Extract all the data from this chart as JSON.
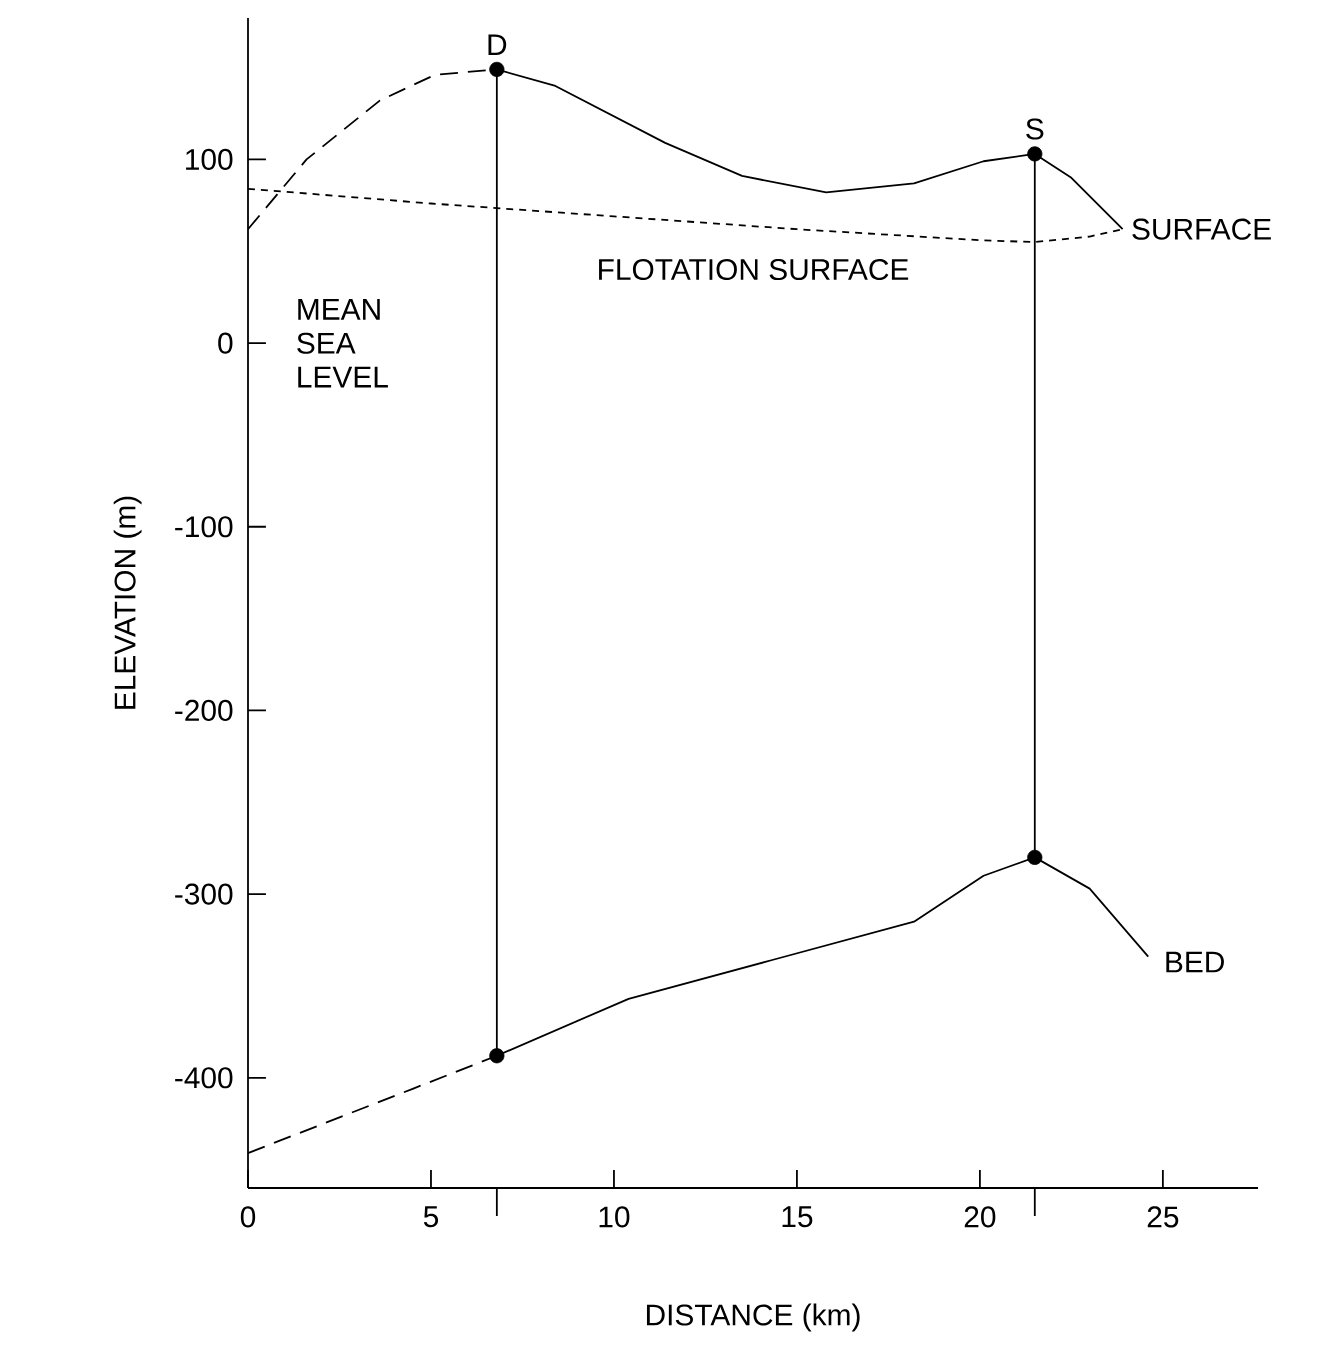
{
  "chart_data": {
    "type": "line",
    "xlabel": "DISTANCE (km)",
    "ylabel": "ELEVATION (m)",
    "xlim": [
      0,
      27.6
    ],
    "ylim": [
      -460,
      177
    ],
    "xticks": [
      0,
      5,
      10,
      15,
      20,
      25,
      {
        "value": 6.8,
        "label": null
      },
      {
        "value": 21.5,
        "label": null
      }
    ],
    "yticks": [
      -400,
      -300,
      -200,
      -100,
      0,
      100
    ],
    "series": [
      {
        "line_style": "dashed",
        "color": "#000000",
        "x": [
          0,
          1.6,
          3.6,
          5.1,
          6.8
        ],
        "values": [
          62,
          100,
          132,
          146,
          149
        ]
      },
      {
        "line_style": "solid",
        "color": "#000000",
        "x": [
          6.8,
          8.4,
          11.4,
          13.5,
          15.8,
          18.2,
          20.1,
          21.5,
          22.5,
          23.9
        ],
        "values": [
          149,
          140,
          109,
          91,
          82,
          87,
          99,
          103,
          90,
          62
        ]
      },
      {
        "line_style": "dotted",
        "color": "#000000",
        "x": [
          0,
          5,
          10,
          15,
          20,
          21.5,
          23,
          23.9
        ],
        "values": [
          84,
          76,
          69,
          62,
          56,
          55,
          58,
          62
        ]
      },
      {
        "line_style": "dashed",
        "color": "#000000",
        "x": [
          0,
          4.5,
          6.8
        ],
        "values": [
          -441,
          -406,
          -388
        ]
      },
      {
        "line_style": "solid",
        "color": "#000000",
        "x": [
          6.8,
          10.4,
          14.3,
          18.2,
          20.1,
          21.5,
          23,
          24.6
        ],
        "values": [
          -388,
          -357,
          -336,
          -315,
          -290,
          -280,
          -297,
          -334
        ]
      },
      {
        "type": "scatter",
        "color": "#000000",
        "x": [
          6.8,
          21.5,
          6.8,
          21.5
        ],
        "values": [
          149,
          103,
          -388,
          -280
        ]
      }
    ],
    "ref_lines": [
      {
        "axis": "x",
        "value": 6.8,
        "color": "#000000"
      },
      {
        "axis": "x",
        "value": 21.5,
        "color": "#000000"
      }
    ],
    "annotations": [
      {
        "text": "D",
        "x": 6.8,
        "y": 149
      },
      {
        "text": "S",
        "x": 21.5,
        "y": 103
      },
      {
        "text": "SURFACE",
        "x": 23.9,
        "y": 62
      },
      "FLOTATION SURFACE",
      "MEAN SEA LEVEL",
      {
        "text": "BED",
        "x": 24.8,
        "y": -337
      }
    ]
  }
}
